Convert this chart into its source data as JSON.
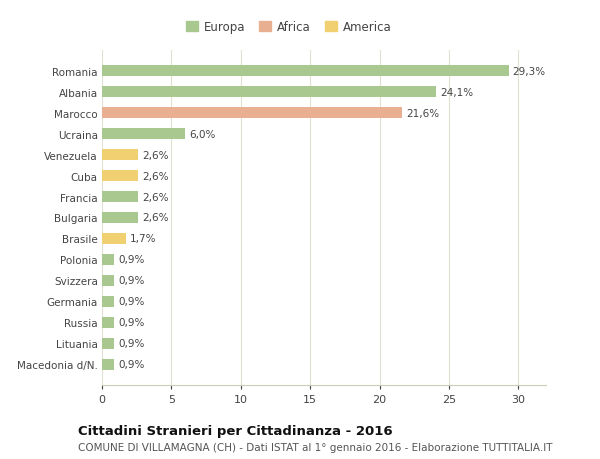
{
  "categories": [
    "Romania",
    "Albania",
    "Marocco",
    "Ucraina",
    "Venezuela",
    "Cuba",
    "Francia",
    "Bulgaria",
    "Brasile",
    "Polonia",
    "Svizzera",
    "Germania",
    "Russia",
    "Lituania",
    "Macedonia d/N."
  ],
  "values": [
    29.3,
    24.1,
    21.6,
    6.0,
    2.6,
    2.6,
    2.6,
    2.6,
    1.7,
    0.9,
    0.9,
    0.9,
    0.9,
    0.9,
    0.9
  ],
  "labels": [
    "29,3%",
    "24,1%",
    "21,6%",
    "6,0%",
    "2,6%",
    "2,6%",
    "2,6%",
    "2,6%",
    "1,7%",
    "0,9%",
    "0,9%",
    "0,9%",
    "0,9%",
    "0,9%",
    "0,9%"
  ],
  "continents": [
    "Europa",
    "Europa",
    "Africa",
    "Europa",
    "America",
    "America",
    "Europa",
    "Europa",
    "America",
    "Europa",
    "Europa",
    "Europa",
    "Europa",
    "Europa",
    "Europa"
  ],
  "colors": {
    "Europa": "#a8c890",
    "Africa": "#e8b090",
    "America": "#f0d070"
  },
  "legend": [
    {
      "label": "Europa",
      "color": "#a8c890"
    },
    {
      "label": "Africa",
      "color": "#e8b090"
    },
    {
      "label": "America",
      "color": "#f0d070"
    }
  ],
  "xlim": [
    0,
    32
  ],
  "xticks": [
    0,
    5,
    10,
    15,
    20,
    25,
    30
  ],
  "title": "Cittadini Stranieri per Cittadinanza - 2016",
  "subtitle": "COMUNE DI VILLAMAGNA (CH) - Dati ISTAT al 1° gennaio 2016 - Elaborazione TUTTITALIA.IT",
  "fig_bg_color": "#ffffff",
  "plot_bg_color": "#ffffff",
  "grid_color": "#e0e0d0",
  "bar_height": 0.55,
  "label_fontsize": 7.5,
  "ytick_fontsize": 7.5,
  "xtick_fontsize": 8,
  "title_fontsize": 9.5,
  "subtitle_fontsize": 7.5
}
